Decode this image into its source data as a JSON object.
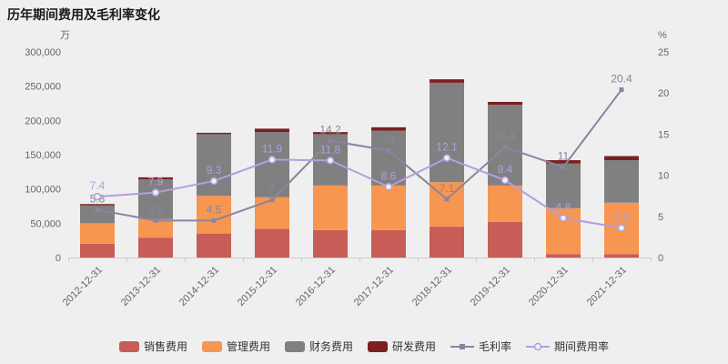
{
  "title": "历年期间费用及毛利率变化",
  "colors": {
    "background": "#efefef",
    "axis_text": "#666666",
    "axis_line": "#cccccc",
    "title_text": "#1a1a1a"
  },
  "chart_data": {
    "type": "bar",
    "subtype": "stacked-bar-with-lines",
    "categories": [
      "2012-12-31",
      "2013-12-31",
      "2014-12-31",
      "2015-12-31",
      "2016-12-31",
      "2017-12-31",
      "2018-12-31",
      "2019-12-31",
      "2020-12-31",
      "2021-12-31"
    ],
    "bar_series": [
      {
        "name": "销售费用",
        "color": "#c85c56",
        "values": [
          20000,
          29000,
          35000,
          42000,
          40000,
          40000,
          45000,
          52000,
          5000,
          5000
        ]
      },
      {
        "name": "管理费用",
        "color": "#f69650",
        "values": [
          30000,
          27000,
          55000,
          46000,
          65000,
          65000,
          65000,
          53000,
          67000,
          75000
        ]
      },
      {
        "name": "财务费用",
        "color": "#808080",
        "values": [
          26000,
          58000,
          90000,
          95000,
          75000,
          80000,
          145000,
          118000,
          65000,
          62000
        ]
      },
      {
        "name": "研发费用",
        "color": "#7c1f21",
        "values": [
          2000,
          3000,
          2000,
          5000,
          3000,
          5000,
          5000,
          4000,
          5000,
          6000
        ]
      }
    ],
    "line_series": [
      {
        "name": "毛利率",
        "color": "#8b84a0",
        "marker": "square",
        "values": [
          5.8,
          4.5,
          4.5,
          7,
          14.2,
          13,
          7.1,
          13.4,
          11,
          20.4
        ]
      },
      {
        "name": "期间费用率",
        "color": "#b29ee0",
        "marker": "circle-hollow",
        "values": [
          7.4,
          7.9,
          9.3,
          11.9,
          11.8,
          8.6,
          12.1,
          9.4,
          4.8,
          3.6
        ]
      }
    ],
    "y_left": {
      "label": "万",
      "min": 0,
      "max": 300000,
      "step": 50000
    },
    "y_right": {
      "label": "%",
      "min": 0,
      "max": 25,
      "step": 5
    },
    "grid": false,
    "legend_position": "bottom"
  }
}
